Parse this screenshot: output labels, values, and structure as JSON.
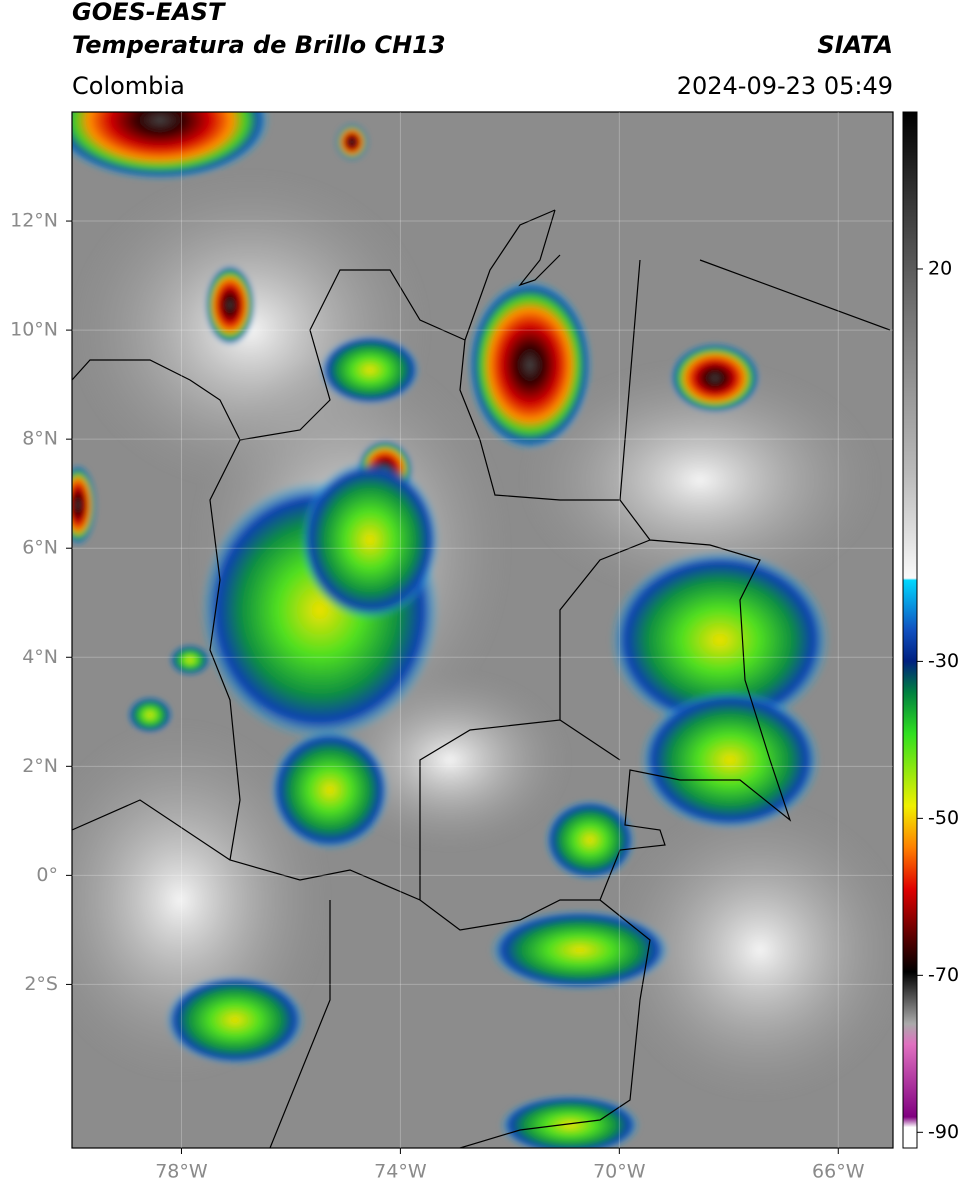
{
  "header": {
    "title": "GOES-EAST",
    "subtitle": "Temperatura de Brillo CH13",
    "source": "SIATA",
    "region": "Colombia",
    "datetime": "2024-09-23 05:49"
  },
  "map": {
    "xlim": [
      -80,
      -65
    ],
    "ylim": [
      -5,
      14
    ],
    "xticks": [
      {
        "value": -78,
        "label": "78°W"
      },
      {
        "value": -74,
        "label": "74°W"
      },
      {
        "value": -70,
        "label": "70°W"
      },
      {
        "value": -66,
        "label": "66°W"
      }
    ],
    "yticks": [
      {
        "value": 12,
        "label": "12°N"
      },
      {
        "value": 10,
        "label": "10°N"
      },
      {
        "value": 8,
        "label": "8°N"
      },
      {
        "value": 6,
        "label": "6°N"
      },
      {
        "value": 4,
        "label": "4°N"
      },
      {
        "value": 2,
        "label": "2°N"
      },
      {
        "value": 0,
        "label": "0°"
      },
      {
        "value": -2,
        "label": "2°S"
      }
    ],
    "grid": true
  },
  "colorbar": {
    "lim": [
      40,
      -92
    ],
    "ticks": [
      20,
      -30,
      -50,
      -70,
      -90
    ]
  }
}
